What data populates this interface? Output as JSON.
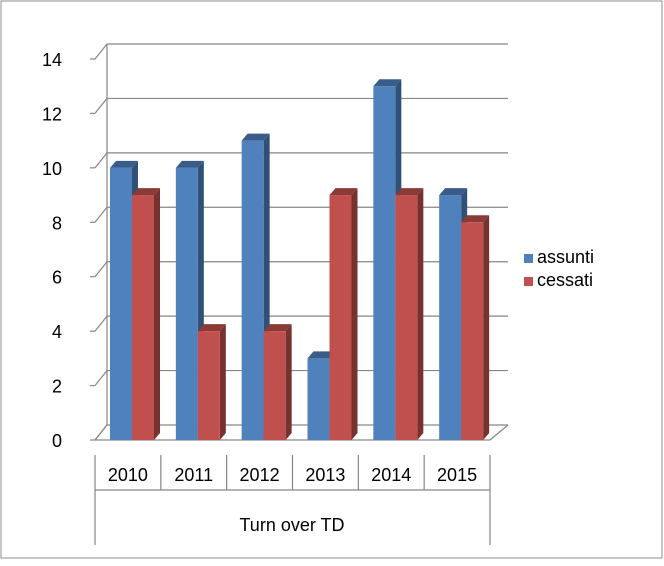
{
  "chart_data": {
    "type": "bar",
    "categories": [
      "2010",
      "2011",
      "2012",
      "2013",
      "2014",
      "2015"
    ],
    "group_label": "Turn over TD",
    "series": [
      {
        "name": "assunti",
        "values": [
          10,
          10,
          11,
          3,
          13,
          9
        ],
        "color": "#4F81BD"
      },
      {
        "name": "cessati",
        "values": [
          9,
          4,
          4,
          9,
          9,
          8
        ],
        "color": "#C0504D"
      }
    ],
    "yticks": [
      "0",
      "2",
      "4",
      "6",
      "8",
      "10",
      "12",
      "14"
    ],
    "ylim": [
      0,
      14
    ],
    "grid": true,
    "legend_position": "right",
    "style": "3d-clustered-column"
  }
}
